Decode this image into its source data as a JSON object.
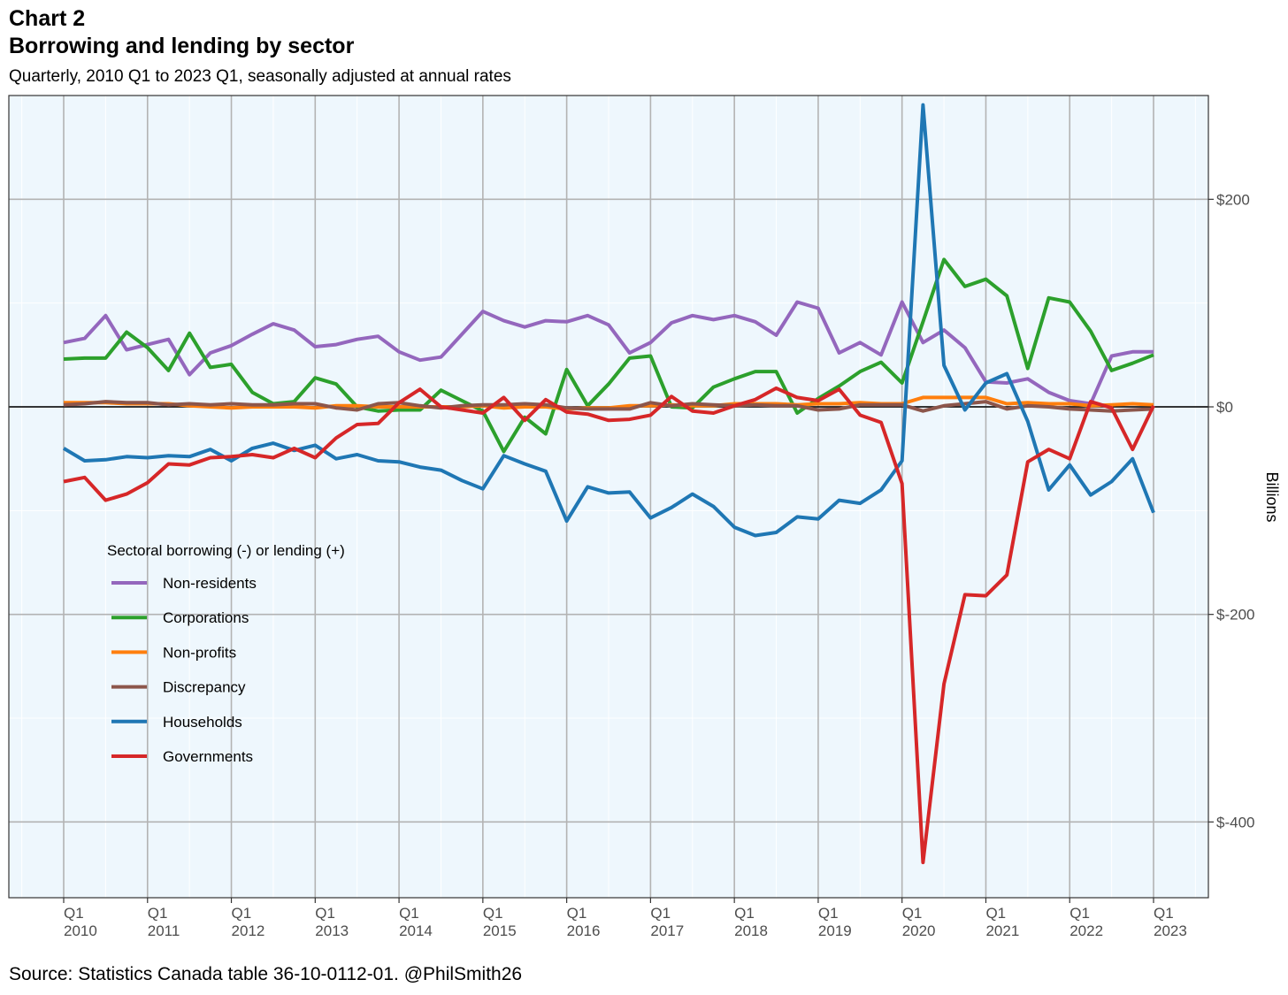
{
  "header": {
    "chart_label": "Chart 2",
    "title": "Borrowing and lending by sector",
    "subtitle": "Quarterly, 2010 Q1 to 2023 Q1, seasonally adjusted at annual rates"
  },
  "footer": {
    "source": "Source: Statistics Canada table 36-10-0112-01. @PhilSmith26"
  },
  "chart_data": {
    "type": "line",
    "title": "Borrowing and lending by sector",
    "subtitle": "Quarterly, 2010 Q1 to 2023 Q1, seasonally adjusted at annual rates",
    "ylabel": "Billions",
    "xlabel": "",
    "y_axis_position": "right",
    "ylim": [
      -473,
      300
    ],
    "yticks": [
      200,
      0,
      -200,
      -400
    ],
    "ytick_labels": [
      "$200",
      "$0",
      "$-200",
      "$-400"
    ],
    "xticks": [
      {
        "line1": "Q1",
        "line2": "2010"
      },
      {
        "line1": "Q1",
        "line2": "2011"
      },
      {
        "line1": "Q1",
        "line2": "2012"
      },
      {
        "line1": "Q1",
        "line2": "2013"
      },
      {
        "line1": "Q1",
        "line2": "2014"
      },
      {
        "line1": "Q1",
        "line2": "2015"
      },
      {
        "line1": "Q1",
        "line2": "2016"
      },
      {
        "line1": "Q1",
        "line2": "2017"
      },
      {
        "line1": "Q1",
        "line2": "2018"
      },
      {
        "line1": "Q1",
        "line2": "2019"
      },
      {
        "line1": "Q1",
        "line2": "2020"
      },
      {
        "line1": "Q1",
        "line2": "2021"
      },
      {
        "line1": "Q1",
        "line2": "2022"
      },
      {
        "line1": "Q1",
        "line2": "2023"
      }
    ],
    "x_start": "2010 Q1",
    "x_end": "2023 Q1",
    "grid": true,
    "zero_line": true,
    "background_color": "#eef7fd",
    "legend": {
      "title": "Sectoral borrowing (-) or lending (+)",
      "position": "left-middle"
    },
    "series": [
      {
        "name": "Non-residents",
        "color": "#9467bd",
        "values": [
          62,
          66,
          88,
          55,
          60,
          65,
          31,
          52,
          59,
          70,
          80,
          74,
          58,
          60,
          65,
          68,
          53,
          45,
          48,
          70,
          92,
          83,
          77,
          83,
          82,
          88,
          79,
          52,
          62,
          81,
          88,
          84,
          88,
          82,
          69,
          101,
          95,
          52,
          62,
          50,
          101,
          62,
          74,
          57,
          24,
          23,
          27,
          14,
          6,
          3,
          49,
          53,
          53
        ]
      },
      {
        "name": "Corporations",
        "color": "#2ca02c",
        "values": [
          46,
          47,
          47,
          72,
          57,
          35,
          71,
          38,
          41,
          14,
          3,
          5,
          28,
          22,
          0,
          -4,
          -3,
          -3,
          16,
          6,
          -4,
          -43,
          -10,
          -26,
          36,
          1,
          22,
          47,
          49,
          0,
          -1,
          19,
          27,
          34,
          34,
          -6,
          8,
          20,
          34,
          43,
          23,
          82,
          142,
          116,
          123,
          107,
          37,
          105,
          101,
          73,
          35,
          42,
          50
        ]
      },
      {
        "name": "Non-profits",
        "color": "#ff7f0e",
        "values": [
          4,
          4,
          4,
          3,
          3,
          3,
          1,
          0,
          -1,
          0,
          0,
          0,
          -1,
          1,
          1,
          0,
          0,
          0,
          0,
          0,
          1,
          -1,
          0,
          0,
          -2,
          -1,
          -1,
          1,
          1,
          2,
          1,
          1,
          3,
          3,
          3,
          2,
          3,
          3,
          4,
          3,
          3,
          9,
          9,
          9,
          9,
          3,
          4,
          3,
          3,
          1,
          2,
          3,
          2
        ]
      },
      {
        "name": "Discrepancy",
        "color": "#8c564b",
        "values": [
          2,
          3,
          5,
          4,
          4,
          2,
          3,
          2,
          3,
          2,
          2,
          3,
          3,
          -1,
          -3,
          3,
          4,
          1,
          -1,
          1,
          2,
          2,
          3,
          2,
          -1,
          -2,
          -2,
          -2,
          4,
          1,
          3,
          2,
          1,
          2,
          1,
          1,
          -3,
          -2,
          2,
          2,
          2,
          -4,
          1,
          3,
          5,
          -2,
          1,
          0,
          -2,
          -3,
          -4,
          -3,
          -2
        ]
      },
      {
        "name": "Households",
        "color": "#1f77b4",
        "values": [
          -40,
          -52,
          -51,
          -48,
          -49,
          -47,
          -48,
          -41,
          -52,
          -40,
          -35,
          -42,
          -37,
          -50,
          -46,
          -52,
          -53,
          -58,
          -61,
          -71,
          -79,
          -47,
          -55,
          -62,
          -110,
          -77,
          -83,
          -82,
          -107,
          -97,
          -84,
          -96,
          -116,
          -124,
          -121,
          -106,
          -108,
          -90,
          -93,
          -80,
          -52,
          291,
          40,
          -3,
          23,
          32,
          -14,
          -80,
          -56,
          -85,
          -72,
          -50,
          -102
        ]
      },
      {
        "name": "Governments",
        "color": "#d62728",
        "values": [
          -72,
          -68,
          -90,
          -84,
          -73,
          -55,
          -56,
          -49,
          -48,
          -46,
          -49,
          -40,
          -49,
          -30,
          -17,
          -16,
          4,
          17,
          0,
          -3,
          -6,
          9,
          -13,
          7,
          -5,
          -7,
          -13,
          -12,
          -8,
          10,
          -4,
          -6,
          1,
          7,
          18,
          9,
          6,
          17,
          -8,
          -15,
          -74,
          -439,
          -267,
          -181,
          -182,
          -162,
          -53,
          -41,
          -50,
          5,
          -1,
          -41,
          1
        ]
      }
    ]
  }
}
